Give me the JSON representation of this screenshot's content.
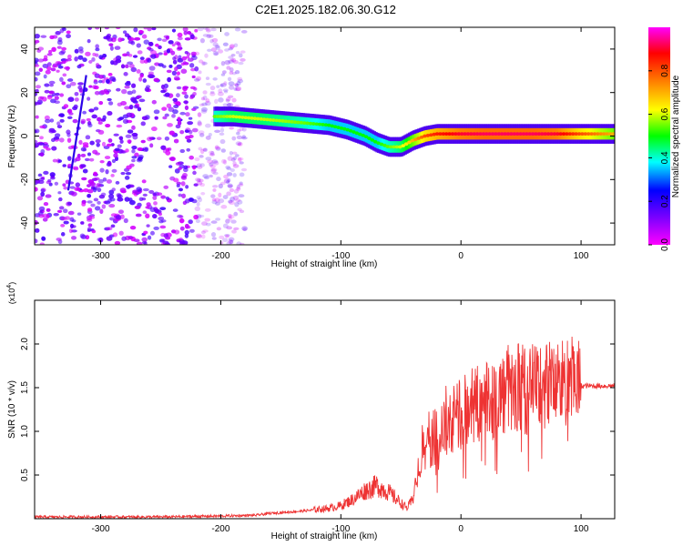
{
  "title": "C2E1.2025.182.06.30.G12",
  "chart_data": [
    {
      "type": "heatmap",
      "title": "C2E1.2025.182.06.30.G12",
      "xlabel": "Height of straight line (km)",
      "ylabel": "Frequency (Hz)",
      "xlim": [
        -355,
        128
      ],
      "ylim": [
        -50,
        50
      ],
      "xticks": [
        -300,
        -200,
        -100,
        0,
        100
      ],
      "yticks": [
        -40,
        -20,
        0,
        20,
        40
      ],
      "colorbar": {
        "label": "Normalized spectral amplitude",
        "range": [
          0,
          1
        ],
        "ticks": [
          0.0,
          0.2,
          0.4,
          0.6,
          0.8
        ],
        "colormap": [
          "#ff00ff",
          "#8000ff",
          "#0000ff",
          "#00ffff",
          "#00ff00",
          "#ffff00",
          "#ff8000",
          "#ff0000",
          "#ff00ff"
        ]
      },
      "signal_track": {
        "x": [
          -205,
          -190,
          -170,
          -150,
          -130,
          -110,
          -95,
          -80,
          -70,
          -60,
          -50,
          -40,
          -30,
          -20,
          0,
          20,
          40,
          60,
          80,
          100,
          128
        ],
        "y": [
          9,
          9,
          8,
          7,
          6,
          5,
          3,
          0,
          -3,
          -5,
          -5,
          -2,
          0,
          1,
          1,
          1,
          1,
          1,
          1,
          1,
          1
        ],
        "amplitude": [
          0.55,
          0.6,
          0.6,
          0.58,
          0.55,
          0.5,
          0.5,
          0.5,
          0.5,
          0.55,
          0.6,
          0.7,
          0.8,
          0.85,
          0.9,
          0.92,
          0.92,
          0.92,
          0.9,
          0.8,
          0.7
        ]
      },
      "noise_region_x": [
        -355,
        -180
      ]
    },
    {
      "type": "line",
      "xlabel": "Height of straight line (km)",
      "ylabel": "SNR (10 * v/v)",
      "y_multiplier": "(x10^4)",
      "xlim": [
        -355,
        128
      ],
      "ylim": [
        0,
        2.5
      ],
      "xticks": [
        -300,
        -200,
        -100,
        0,
        100
      ],
      "yticks": [
        0.5,
        1.0,
        1.5,
        2.0
      ],
      "line_color": "#ee3333",
      "series": [
        {
          "x": [
            -355,
            -300,
            -250,
            -200,
            -170,
            -160,
            -150,
            -130,
            -110,
            -100,
            -90,
            -80,
            -70,
            -60,
            -50,
            -45,
            -40,
            -35,
            -30,
            -25,
            -20,
            -10,
            0,
            10,
            20,
            30,
            40,
            50,
            60,
            70,
            80,
            90,
            95,
            100,
            110,
            120,
            128
          ],
          "y": [
            0.02,
            0.02,
            0.02,
            0.03,
            0.04,
            0.06,
            0.07,
            0.09,
            0.12,
            0.15,
            0.22,
            0.32,
            0.38,
            0.3,
            0.18,
            0.12,
            0.22,
            0.6,
            0.85,
            0.9,
            0.95,
            1.05,
            1.2,
            1.3,
            1.35,
            1.4,
            1.45,
            1.45,
            1.5,
            1.55,
            1.55,
            1.55,
            1.58,
            1.52,
            1.52,
            1.52,
            1.52
          ]
        }
      ]
    }
  ]
}
